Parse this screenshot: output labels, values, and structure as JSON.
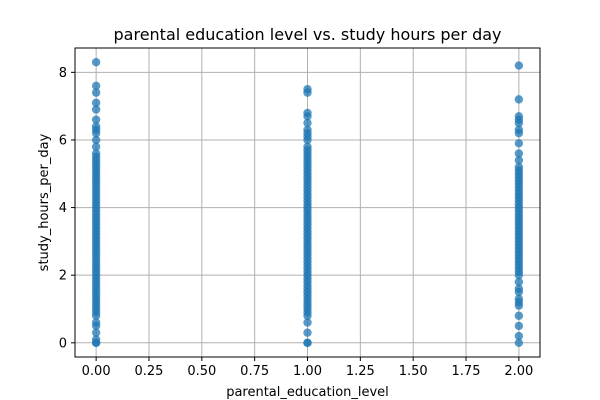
{
  "chart_data": {
    "type": "scatter",
    "title": "parental education level vs. study hours per day",
    "xlabel": "parental_education_level",
    "ylabel": "study_hours_per_day",
    "xlim": [
      -0.1,
      2.1
    ],
    "ylim": [
      -0.42,
      8.72
    ],
    "xticks": [
      0.0,
      0.25,
      0.5,
      0.75,
      1.0,
      1.25,
      1.5,
      1.75,
      2.0
    ],
    "xtick_labels": [
      "0.00",
      "0.25",
      "0.50",
      "0.75",
      "1.00",
      "1.25",
      "1.50",
      "1.75",
      "2.00"
    ],
    "yticks": [
      0,
      2,
      4,
      6,
      8
    ],
    "ytick_labels": [
      "0",
      "2",
      "4",
      "6",
      "8"
    ],
    "grid": true,
    "marker_color": "#1f77b4",
    "marker_alpha": 0.75,
    "series": [
      {
        "x_value": 0,
        "y": [
          0.0,
          0.0,
          0.1,
          0.3,
          0.5,
          0.6,
          0.8,
          0.9,
          1.0,
          1.1,
          1.2,
          1.3,
          1.4,
          1.5,
          1.6,
          1.7,
          1.8,
          1.9,
          2.0,
          2.1,
          2.2,
          2.3,
          2.4,
          2.5,
          2.6,
          2.7,
          2.8,
          2.9,
          3.0,
          3.1,
          3.2,
          3.3,
          3.4,
          3.5,
          3.6,
          3.7,
          3.8,
          3.9,
          4.0,
          4.1,
          4.2,
          4.3,
          4.4,
          4.5,
          4.6,
          4.7,
          4.8,
          4.9,
          5.0,
          5.1,
          5.2,
          5.3,
          5.4,
          5.5,
          5.6,
          5.8,
          6.0,
          6.2,
          6.3,
          6.4,
          6.6,
          6.9,
          7.1,
          7.4,
          7.6,
          8.3
        ]
      },
      {
        "x_value": 1,
        "y": [
          0.0,
          0.0,
          0.3,
          0.6,
          0.8,
          0.9,
          1.0,
          1.1,
          1.2,
          1.3,
          1.4,
          1.5,
          1.6,
          1.7,
          1.8,
          1.9,
          2.0,
          2.1,
          2.2,
          2.3,
          2.4,
          2.5,
          2.6,
          2.7,
          2.8,
          2.9,
          3.0,
          3.1,
          3.2,
          3.3,
          3.4,
          3.5,
          3.6,
          3.7,
          3.8,
          3.9,
          4.0,
          4.1,
          4.2,
          4.3,
          4.4,
          4.5,
          4.6,
          4.7,
          4.8,
          4.9,
          5.0,
          5.1,
          5.2,
          5.3,
          5.4,
          5.5,
          5.6,
          5.7,
          5.8,
          6.0,
          6.1,
          6.2,
          6.3,
          6.5,
          6.7,
          6.8,
          7.4,
          7.5
        ]
      },
      {
        "x_value": 2,
        "y": [
          0.0,
          0.2,
          0.5,
          0.8,
          1.1,
          1.2,
          1.3,
          1.5,
          1.6,
          1.8,
          2.0,
          2.1,
          2.2,
          2.3,
          2.4,
          2.5,
          2.6,
          2.7,
          2.8,
          2.9,
          3.0,
          3.1,
          3.2,
          3.3,
          3.4,
          3.5,
          3.6,
          3.7,
          3.8,
          3.9,
          4.0,
          4.1,
          4.2,
          4.3,
          4.4,
          4.5,
          4.6,
          4.7,
          4.8,
          4.9,
          5.0,
          5.1,
          5.2,
          5.4,
          5.6,
          5.9,
          6.2,
          6.3,
          6.5,
          6.6,
          6.7,
          7.2,
          8.2
        ]
      }
    ]
  }
}
